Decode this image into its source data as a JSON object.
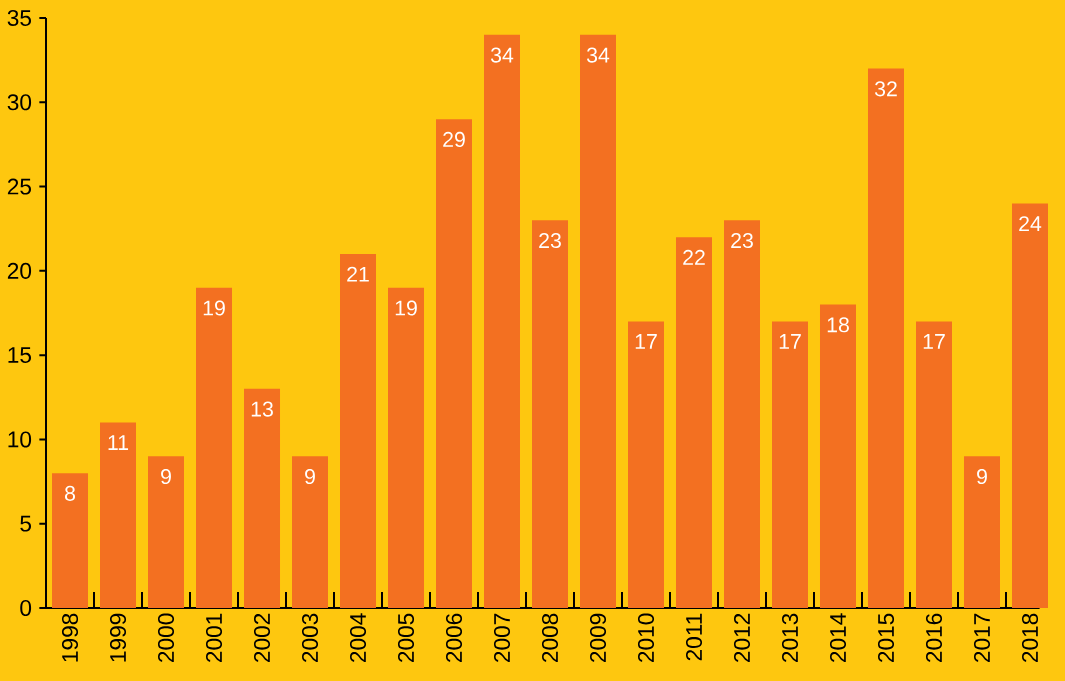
{
  "chart_data": {
    "type": "bar",
    "categories": [
      "1998",
      "1999",
      "2000",
      "2001",
      "2002",
      "2003",
      "2004",
      "2005",
      "2006",
      "2007",
      "2008",
      "2009",
      "2010",
      "2011",
      "2012",
      "2013",
      "2014",
      "2015",
      "2016",
      "2017",
      "2018"
    ],
    "values": [
      8,
      11,
      9,
      19,
      13,
      9,
      21,
      19,
      29,
      34,
      23,
      34,
      17,
      22,
      23,
      17,
      18,
      32,
      17,
      9,
      24
    ],
    "color": "#f37021",
    "ylim": [
      0,
      35
    ],
    "yticks": [
      0,
      5,
      10,
      15,
      20,
      25,
      30,
      35
    ],
    "data_labels": true
  }
}
